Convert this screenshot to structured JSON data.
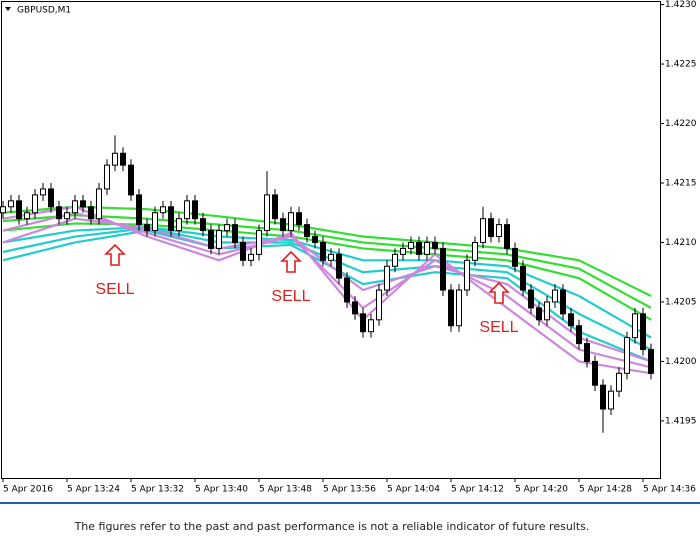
{
  "chart_data": {
    "type": "candlestick",
    "title": "GBPUSD,M1",
    "x": [
      "13:16",
      "13:17",
      "13:18",
      "13:19",
      "13:20",
      "13:21",
      "13:22",
      "13:23",
      "13:24",
      "13:25",
      "13:26",
      "13:27",
      "13:28",
      "13:29",
      "13:30",
      "13:31",
      "13:32",
      "13:33",
      "13:34",
      "13:35",
      "13:36",
      "13:37",
      "13:38",
      "13:39",
      "13:40",
      "13:41",
      "13:42",
      "13:43",
      "13:44",
      "13:45",
      "13:46",
      "13:47",
      "13:48",
      "13:49",
      "13:50",
      "13:51",
      "13:52",
      "13:53",
      "13:54",
      "13:55",
      "13:56",
      "13:57",
      "13:58",
      "13:59",
      "14:00",
      "14:01",
      "14:02",
      "14:03",
      "14:04",
      "14:05",
      "14:06",
      "14:07",
      "14:08",
      "14:09",
      "14:10",
      "14:11",
      "14:12",
      "14:13",
      "14:14",
      "14:15",
      "14:16",
      "14:17",
      "14:18",
      "14:19",
      "14:20",
      "14:21",
      "14:22",
      "14:23",
      "14:24",
      "14:25",
      "14:26",
      "14:27",
      "14:28",
      "14:29",
      "14:30",
      "14:31",
      "14:32",
      "14:33",
      "14:34",
      "14:35",
      "14:36",
      "14:37"
    ],
    "open": [
      1.42125,
      1.4213,
      1.42135,
      1.4212,
      1.42125,
      1.4214,
      1.42145,
      1.4213,
      1.4212,
      1.42125,
      1.42135,
      1.4213,
      1.4212,
      1.42145,
      1.42165,
      1.42175,
      1.42165,
      1.4214,
      1.42115,
      1.4211,
      1.42125,
      1.4213,
      1.4211,
      1.4212,
      1.42135,
      1.4212,
      1.4211,
      1.42095,
      1.4211,
      1.42115,
      1.421,
      1.42085,
      1.4209,
      1.4211,
      1.4214,
      1.4212,
      1.4211,
      1.42125,
      1.42115,
      1.42105,
      1.421,
      1.42085,
      1.4209,
      1.4207,
      1.4205,
      1.4204,
      1.42025,
      1.42035,
      1.4206,
      1.4208,
      1.4209,
      1.42095,
      1.421,
      1.4209,
      1.421,
      1.42095,
      1.4206,
      1.4203,
      1.4206,
      1.42085,
      1.421,
      1.4212,
      1.42105,
      1.42115,
      1.42095,
      1.4208,
      1.4206,
      1.42045,
      1.42035,
      1.4205,
      1.4206,
      1.4204,
      1.4203,
      1.42015,
      1.42,
      1.4198,
      1.4196,
      1.41975,
      1.4199,
      1.4202,
      1.4204,
      1.4201
    ],
    "high": [
      1.42135,
      1.4214,
      1.4214,
      1.4213,
      1.42145,
      1.4215,
      1.4215,
      1.42135,
      1.4213,
      1.4214,
      1.4214,
      1.42135,
      1.4215,
      1.4217,
      1.4219,
      1.4218,
      1.4217,
      1.42145,
      1.4212,
      1.4213,
      1.42135,
      1.42135,
      1.42125,
      1.4214,
      1.4214,
      1.42125,
      1.42115,
      1.42115,
      1.4212,
      1.4212,
      1.42105,
      1.42095,
      1.42115,
      1.4216,
      1.42145,
      1.42125,
      1.4213,
      1.4213,
      1.4212,
      1.4211,
      1.42105,
      1.42095,
      1.42095,
      1.42075,
      1.42055,
      1.42045,
      1.4204,
      1.42065,
      1.42085,
      1.42095,
      1.421,
      1.42105,
      1.42105,
      1.42105,
      1.42105,
      1.421,
      1.42065,
      1.42065,
      1.4209,
      1.42105,
      1.4213,
      1.42125,
      1.4212,
      1.4212,
      1.421,
      1.42085,
      1.42065,
      1.4205,
      1.42055,
      1.42065,
      1.42065,
      1.42045,
      1.42035,
      1.4202,
      1.42005,
      1.41985,
      1.4198,
      1.41995,
      1.42025,
      1.42045,
      1.42045,
      1.42015
    ],
    "low": [
      1.4212,
      1.42125,
      1.42115,
      1.42115,
      1.4212,
      1.42135,
      1.42125,
      1.42115,
      1.42115,
      1.4212,
      1.42125,
      1.42115,
      1.42115,
      1.4214,
      1.4216,
      1.4216,
      1.42135,
      1.4211,
      1.42105,
      1.42105,
      1.4212,
      1.42105,
      1.42105,
      1.42115,
      1.42115,
      1.42105,
      1.4209,
      1.4209,
      1.42105,
      1.42095,
      1.4208,
      1.4208,
      1.42085,
      1.42105,
      1.42115,
      1.42105,
      1.42105,
      1.4211,
      1.421,
      1.42095,
      1.4208,
      1.4208,
      1.42065,
      1.42045,
      1.42035,
      1.4202,
      1.4202,
      1.4203,
      1.42055,
      1.42075,
      1.42085,
      1.4209,
      1.42085,
      1.42085,
      1.4209,
      1.42055,
      1.42025,
      1.42025,
      1.42055,
      1.4208,
      1.42095,
      1.421,
      1.421,
      1.4209,
      1.42075,
      1.42055,
      1.4204,
      1.4203,
      1.4203,
      1.42045,
      1.42035,
      1.42025,
      1.4201,
      1.41995,
      1.41975,
      1.4194,
      1.41955,
      1.4197,
      1.41985,
      1.42015,
      1.42005,
      1.41985
    ],
    "close": [
      1.4213,
      1.42135,
      1.4212,
      1.42125,
      1.4214,
      1.42145,
      1.4213,
      1.4212,
      1.42125,
      1.42135,
      1.4213,
      1.4212,
      1.42145,
      1.42165,
      1.42175,
      1.42165,
      1.4214,
      1.42115,
      1.4211,
      1.42125,
      1.4213,
      1.4211,
      1.4212,
      1.42135,
      1.4212,
      1.4211,
      1.42095,
      1.4211,
      1.42115,
      1.421,
      1.42085,
      1.4209,
      1.4211,
      1.4214,
      1.4212,
      1.4211,
      1.42125,
      1.42115,
      1.42105,
      1.421,
      1.42085,
      1.4209,
      1.4207,
      1.4205,
      1.4204,
      1.42025,
      1.42035,
      1.4206,
      1.4208,
      1.4209,
      1.42095,
      1.421,
      1.4209,
      1.421,
      1.42095,
      1.4206,
      1.4203,
      1.4206,
      1.42085,
      1.421,
      1.4212,
      1.42105,
      1.42115,
      1.42095,
      1.4208,
      1.4206,
      1.42045,
      1.42035,
      1.4205,
      1.4206,
      1.4204,
      1.4203,
      1.42015,
      1.42,
      1.4198,
      1.4196,
      1.41975,
      1.4199,
      1.4202,
      1.4204,
      1.4201,
      1.4199
    ],
    "ribbon_x": [
      "13:16",
      "13:25",
      "13:34",
      "13:43",
      "13:52",
      "14:01",
      "14:10",
      "14:19",
      "14:28",
      "14:37"
    ],
    "ribbons": [
      {
        "color": "#33dd33",
        "values": [
          1.42125,
          1.4213,
          1.42128,
          1.42122,
          1.42115,
          1.42105,
          1.421,
          1.42095,
          1.42085,
          1.42055
        ]
      },
      {
        "color": "#33dd33",
        "values": [
          1.42118,
          1.42123,
          1.4212,
          1.42115,
          1.4211,
          1.421,
          1.42095,
          1.4209,
          1.42078,
          1.42045
        ]
      },
      {
        "color": "#33dd33",
        "values": [
          1.4211,
          1.42116,
          1.42115,
          1.4211,
          1.42105,
          1.42095,
          1.4209,
          1.42085,
          1.4207,
          1.42035
        ]
      },
      {
        "color": "#22cccc",
        "values": [
          1.421,
          1.4211,
          1.42113,
          1.42105,
          1.42102,
          1.42085,
          1.42085,
          1.4208,
          1.42055,
          1.4202
        ]
      },
      {
        "color": "#22cccc",
        "values": [
          1.42092,
          1.42105,
          1.42112,
          1.421,
          1.421,
          1.42075,
          1.4208,
          1.42075,
          1.4204,
          1.4201
        ]
      },
      {
        "color": "#22cccc",
        "values": [
          1.42085,
          1.421,
          1.4211,
          1.42095,
          1.42098,
          1.42065,
          1.42075,
          1.4207,
          1.42025,
          1.42
        ]
      },
      {
        "color": "#cc88dd",
        "values": [
          1.421,
          1.4212,
          1.42112,
          1.42095,
          1.42105,
          1.4206,
          1.4208,
          1.42065,
          1.4202,
          1.42
        ]
      },
      {
        "color": "#cc88dd",
        "values": [
          1.4211,
          1.42125,
          1.42108,
          1.4209,
          1.42105,
          1.42045,
          1.42085,
          1.42055,
          1.4201,
          1.41995
        ]
      },
      {
        "color": "#cc88dd",
        "values": [
          1.4212,
          1.4213,
          1.42105,
          1.42085,
          1.42108,
          1.42035,
          1.4209,
          1.42045,
          1.42,
          1.4199
        ]
      }
    ],
    "annotations": [
      {
        "text": "SELL",
        "x": "13:30"
      },
      {
        "text": "SELL",
        "x": "13:52"
      },
      {
        "text": "SELL",
        "x": "14:18"
      }
    ],
    "ylim": [
      1.41902,
      1.42303
    ],
    "yticks": [
      {
        "value": 1.423,
        "label": "1.4230"
      },
      1.4225,
      {
        "value": 1.422,
        "label": "1.4220"
      },
      1.4215,
      {
        "value": 1.421,
        "label": "1.4210"
      },
      1.4205,
      {
        "value": 1.42,
        "label": "1.4200"
      },
      1.4195
    ],
    "xticks": [
      {
        "value": "13:16",
        "label": "5 Apr 2016"
      },
      {
        "value": "13:24",
        "label": "5 Apr 13:24"
      },
      {
        "value": "13:32",
        "label": "5 Apr 13:32"
      },
      {
        "value": "13:40",
        "label": "5 Apr 13:40"
      },
      {
        "value": "13:48",
        "label": "5 Apr 13:48"
      },
      {
        "value": "13:56",
        "label": "5 Apr 13:56"
      },
      {
        "value": "14:04",
        "label": "5 Apr 14:04"
      },
      {
        "value": "14:12",
        "label": "5 Apr 14:12"
      },
      {
        "value": "14:20",
        "label": "5 Apr 14:20"
      },
      {
        "value": "14:28",
        "label": "5 Apr 14:28"
      },
      {
        "value": "14:36",
        "label": "5 Apr 14:36"
      }
    ],
    "footer": "The figures refer to the past and past performance is not a reliable indicator of future results."
  }
}
